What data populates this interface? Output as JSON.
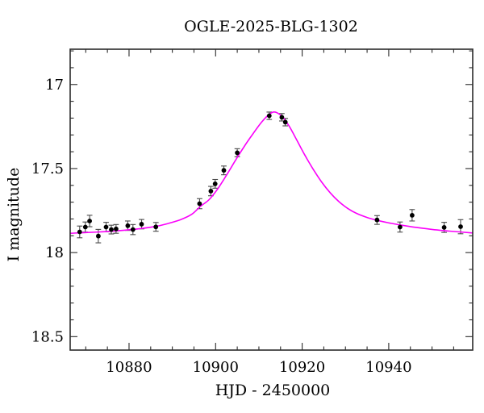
{
  "chart_data": {
    "type": "scatter",
    "title": "OGLE-2025-BLG-1302",
    "xlabel": "HJD - 2450000",
    "ylabel": "I magnitude",
    "legend": null,
    "grid": false,
    "y_axis_inverted": true,
    "xlim": [
      10866.4,
      10959.4
    ],
    "ylim": [
      16.79,
      18.58
    ],
    "x_ticks_major": [
      10880,
      10900,
      10920,
      10940
    ],
    "x_tick_minor_step": 5,
    "y_ticks_major": [
      17,
      17.5,
      18,
      18.5
    ],
    "y_tick_minor_step": 0.1,
    "points_columns": [
      "hjd_minus_2450000",
      "i_magnitude",
      "error_mag"
    ],
    "points": [
      [
        10868.6,
        17.877,
        0.035
      ],
      [
        10869.9,
        17.848,
        0.03
      ],
      [
        10870.9,
        17.812,
        0.034
      ],
      [
        10872.9,
        17.902,
        0.04
      ],
      [
        10874.7,
        17.848,
        0.028
      ],
      [
        10875.9,
        17.863,
        0.026
      ],
      [
        10877.0,
        17.859,
        0.026
      ],
      [
        10879.7,
        17.84,
        0.028
      ],
      [
        10880.9,
        17.863,
        0.03
      ],
      [
        10882.9,
        17.831,
        0.028
      ],
      [
        10886.2,
        17.847,
        0.026
      ],
      [
        10896.3,
        17.709,
        0.03
      ],
      [
        10898.9,
        17.634,
        0.028
      ],
      [
        10899.9,
        17.591,
        0.026
      ],
      [
        10901.9,
        17.511,
        0.026
      ],
      [
        10905.0,
        17.406,
        0.024
      ],
      [
        10912.4,
        17.186,
        0.022
      ],
      [
        10915.3,
        17.195,
        0.022
      ],
      [
        10916.1,
        17.224,
        0.022
      ],
      [
        10937.3,
        17.806,
        0.026
      ],
      [
        10942.6,
        17.848,
        0.03
      ],
      [
        10945.4,
        17.778,
        0.034
      ],
      [
        10952.8,
        17.85,
        0.03
      ],
      [
        10956.6,
        17.846,
        0.042
      ]
    ],
    "model_curve": {
      "description": "microlensing-fit",
      "samples": [
        [
          10866.4,
          17.885
        ],
        [
          10870.0,
          17.881
        ],
        [
          10874.0,
          17.876
        ],
        [
          10878.0,
          17.869
        ],
        [
          10882.0,
          17.859
        ],
        [
          10886.0,
          17.845
        ],
        [
          10889.0,
          17.827
        ],
        [
          10892.0,
          17.803
        ],
        [
          10894.5,
          17.772
        ],
        [
          10896.5,
          17.725
        ],
        [
          10898.5,
          17.685
        ],
        [
          10900.5,
          17.62
        ],
        [
          10902.5,
          17.54
        ],
        [
          10904.5,
          17.455
        ],
        [
          10906.5,
          17.373
        ],
        [
          10908.5,
          17.298
        ],
        [
          10910.5,
          17.228
        ],
        [
          10912.0,
          17.186
        ],
        [
          10913.2,
          17.165
        ],
        [
          10914.2,
          17.168
        ],
        [
          10915.5,
          17.195
        ],
        [
          10917.0,
          17.248
        ],
        [
          10918.5,
          17.318
        ],
        [
          10920.5,
          17.415
        ],
        [
          10922.5,
          17.502
        ],
        [
          10924.5,
          17.58
        ],
        [
          10926.5,
          17.645
        ],
        [
          10928.5,
          17.697
        ],
        [
          10930.5,
          17.737
        ],
        [
          10932.5,
          17.766
        ],
        [
          10935.0,
          17.791
        ],
        [
          10937.5,
          17.809
        ],
        [
          10940.0,
          17.823
        ],
        [
          10943.0,
          17.837
        ],
        [
          10946.0,
          17.849
        ],
        [
          10950.0,
          17.862
        ],
        [
          10954.0,
          17.872
        ],
        [
          10959.4,
          17.883
        ]
      ]
    },
    "colors": {
      "background": "#ffffff",
      "frame": "#2b2b2b",
      "tick": "#2b2b2b",
      "point": "#000000",
      "error_bar": "#4a4a4a",
      "curve": "#fa00fa",
      "text": "#000000"
    }
  }
}
